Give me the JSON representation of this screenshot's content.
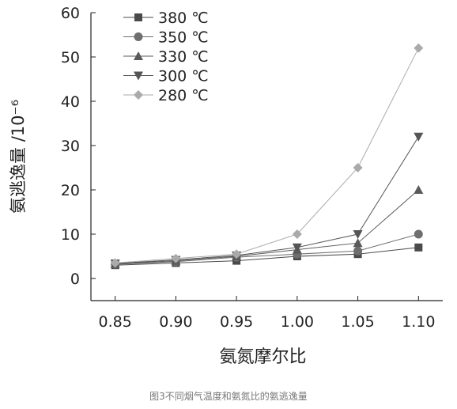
{
  "chart_data": {
    "type": "line",
    "x": [
      0.85,
      0.9,
      0.95,
      1.0,
      1.05,
      1.1
    ],
    "x_tick_labels": [
      "0.85",
      "0.90",
      "0.95",
      "1.00",
      "1.05",
      "1.10"
    ],
    "xlim": [
      0.83,
      1.12
    ],
    "ylim": [
      -5,
      60
    ],
    "y_ticks": [
      0,
      10,
      20,
      30,
      40,
      50,
      60
    ],
    "xlabel": "氨氮摩尔比",
    "ylabel": "氨逃逸量 /10⁻⁶",
    "grid": false,
    "legend_position": "top-left",
    "series": [
      {
        "name": "380 ℃",
        "marker": "square",
        "color": "#4a4a4a",
        "values": [
          3.0,
          3.5,
          4.0,
          5.0,
          5.5,
          7.0
        ]
      },
      {
        "name": "350 ℃",
        "marker": "circle",
        "color": "#6e6e6e",
        "values": [
          3.2,
          3.8,
          4.8,
          5.5,
          6.2,
          10.0
        ]
      },
      {
        "name": "330 ℃",
        "marker": "triangle-up",
        "color": "#5a5a5a",
        "values": [
          3.3,
          4.0,
          5.0,
          6.5,
          8.0,
          20.0
        ]
      },
      {
        "name": "300 ℃",
        "marker": "triangle-down",
        "color": "#555555",
        "values": [
          3.4,
          4.2,
          5.2,
          7.0,
          10.0,
          32.0
        ]
      },
      {
        "name": "280 ℃",
        "marker": "diamond",
        "color": "#aaaaaa",
        "values": [
          3.5,
          4.5,
          5.5,
          10.0,
          25.0,
          52.0
        ]
      }
    ]
  },
  "caption": "图3不同烟气温度和氨氮比的氨逃逸量"
}
